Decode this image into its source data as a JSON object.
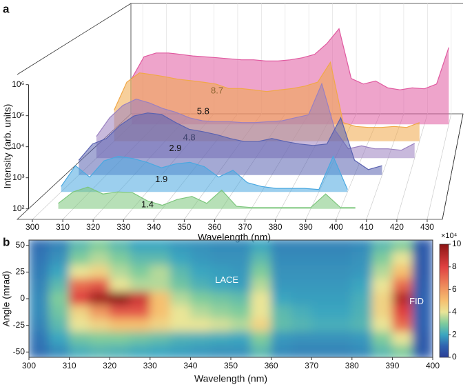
{
  "chart_data": [
    {
      "type": "waterfall",
      "panel": "a",
      "xlabel": "Wavelength (nm)",
      "ylabel": "Intensity (arb. units)",
      "x": [
        300,
        305,
        310,
        315,
        320,
        325,
        330,
        335,
        340,
        345,
        350,
        355,
        360,
        365,
        370,
        375,
        380,
        385,
        390,
        395,
        400,
        405,
        410,
        415,
        420,
        425,
        430
      ],
      "xlim": [
        295,
        435
      ],
      "xticks": [
        300,
        310,
        320,
        330,
        340,
        350,
        360,
        370,
        380,
        390,
        400,
        410,
        420,
        430
      ],
      "log": true,
      "ylim": [
        100,
        1000000
      ],
      "yticks": [
        {
          "value": 100,
          "label": "10²"
        },
        {
          "value": 1000,
          "label": "10³"
        },
        {
          "value": 10000,
          "label": "10⁴"
        },
        {
          "value": 100000,
          "label": "10⁵"
        },
        {
          "value": 1000000,
          "label": "10⁶"
        }
      ],
      "series": [
        {
          "name": "1.4",
          "color": "#7cc67c",
          "values": [
            null,
            150,
            350,
            500,
            300,
            350,
            330,
            180,
            130,
            200,
            250,
            150,
            400,
            120,
            110,
            110,
            110,
            110,
            110,
            300,
            110,
            110,
            null,
            null,
            null,
            null,
            null
          ]
        },
        {
          "name": "1.9",
          "color": "#4aa8e0",
          "values": [
            150,
            700,
            300,
            1000,
            1400,
            1200,
            900,
            600,
            800,
            900,
            650,
            300,
            500,
            200,
            150,
            130,
            130,
            130,
            120,
            1400,
            120,
            null,
            null,
            null,
            null,
            null,
            null
          ]
        },
        {
          "name": "2.9",
          "color": "#5a62b0",
          "values": [
            300,
            1000,
            1500,
            4000,
            8000,
            10000,
            9000,
            5000,
            3000,
            2500,
            2000,
            1500,
            1200,
            1200,
            1500,
            1200,
            1000,
            900,
            1000,
            7000,
            300,
            150,
            200,
            null,
            null,
            null,
            null
          ]
        },
        {
          "name": "4.8",
          "color": "#9a80c0",
          "values": [
            500,
            2000,
            5000,
            8000,
            6000,
            4000,
            3000,
            2000,
            1600,
            1500,
            1500,
            1400,
            1400,
            1500,
            1600,
            2000,
            2500,
            25000,
            800,
            200,
            250,
            200,
            200,
            180,
            300,
            null,
            null
          ]
        },
        {
          "name": "5.8",
          "color": "#f0a848",
          "values": [
            1000,
            8000,
            16000,
            14000,
            12000,
            10000,
            9000,
            8000,
            7000,
            5000,
            5000,
            4500,
            4000,
            4500,
            5000,
            6000,
            8000,
            35000,
            400,
            300,
            280,
            280,
            300,
            280,
            400,
            null,
            null
          ]
        },
        {
          "name": "8.7",
          "color": "#e05aa0",
          "values": [
            3000,
            15000,
            20000,
            20000,
            18000,
            16000,
            15000,
            14000,
            13000,
            12000,
            12000,
            11000,
            11000,
            12000,
            14000,
            18000,
            40000,
            120000,
            3000,
            2000,
            2500,
            1500,
            1300,
            1500,
            1400,
            2000,
            30000
          ]
        }
      ]
    },
    {
      "type": "heatmap",
      "panel": "b",
      "xlabel": "Wavelength (nm)",
      "ylabel": "Angle (mrad)",
      "x": [
        302.5,
        307.5,
        312.5,
        317.5,
        322.5,
        327.5,
        332.5,
        337.5,
        342.5,
        347.5,
        352.5,
        357.5,
        362.5,
        367.5,
        372.5,
        377.5,
        382.5,
        387.5,
        392.5,
        397.5
      ],
      "y": [
        50,
        37.5,
        25,
        12.5,
        0,
        -12.5,
        -25,
        -37.5,
        -50
      ],
      "z": [
        [
          1.2,
          1.5,
          2.5,
          3,
          2.5,
          2,
          2,
          1.8,
          1.7,
          1.6,
          1.6,
          2,
          1.5,
          1.5,
          1.5,
          1.5,
          1.6,
          2.5,
          3,
          0.8
        ],
        [
          1.3,
          1.7,
          3,
          3.5,
          3,
          2.5,
          2.5,
          2,
          1.8,
          1.7,
          1.7,
          2.5,
          1.6,
          1.6,
          1.6,
          1.6,
          1.7,
          3,
          4,
          0.8
        ],
        [
          1.4,
          2,
          4,
          4.5,
          3.5,
          3,
          3.5,
          2.5,
          2,
          1.9,
          1.8,
          3,
          1.7,
          1.7,
          1.7,
          1.7,
          1.8,
          3.5,
          5,
          0.8
        ],
        [
          1.5,
          2.5,
          7,
          7.5,
          4,
          3.5,
          3.5,
          2.8,
          2.3,
          2,
          1.9,
          3.5,
          1.8,
          1.8,
          1.8,
          1.8,
          2,
          4,
          7,
          0.9
        ],
        [
          1.6,
          3,
          8,
          9.5,
          10,
          8.5,
          5,
          3.5,
          3,
          2.8,
          2.6,
          4,
          2,
          1.9,
          1.9,
          1.9,
          2.2,
          4.5,
          9,
          1
        ],
        [
          1.6,
          2.8,
          4.5,
          6,
          7.5,
          7.5,
          5,
          4,
          3.5,
          3.2,
          3,
          4,
          2.5,
          2.2,
          2,
          2,
          2.3,
          4.5,
          8,
          1
        ],
        [
          1.5,
          2.5,
          4,
          4.5,
          5,
          5,
          4.5,
          4,
          4,
          3.8,
          3.5,
          4.5,
          2.6,
          2.4,
          2.2,
          2.2,
          2.4,
          4,
          7,
          1
        ],
        [
          1.3,
          2,
          2.8,
          3,
          3,
          2.8,
          2.6,
          2.3,
          2.2,
          2.1,
          2,
          3,
          1.8,
          1.7,
          1.7,
          1.7,
          1.8,
          3,
          4,
          0.8
        ],
        [
          1.2,
          1.6,
          2.2,
          2.4,
          2.3,
          2.1,
          2,
          1.9,
          1.8,
          1.7,
          1.7,
          2.5,
          1.6,
          1.5,
          1.5,
          1.5,
          1.6,
          2.5,
          3,
          0.8
        ]
      ],
      "xlim": [
        300,
        400
      ],
      "xticks": [
        300,
        310,
        320,
        330,
        340,
        350,
        360,
        370,
        380,
        390,
        400
      ],
      "ylim": [
        -55,
        55
      ],
      "yticks": [
        -50,
        -25,
        0,
        25,
        50
      ],
      "clim": [
        0,
        10
      ],
      "cticks": [
        0,
        2,
        4,
        6,
        8,
        10
      ],
      "colorbar_label": "×10⁴",
      "annotations": [
        {
          "text": "LACE",
          "x": 349,
          "y": 17
        },
        {
          "text": "FID",
          "x": 396,
          "y": -3
        }
      ]
    }
  ]
}
